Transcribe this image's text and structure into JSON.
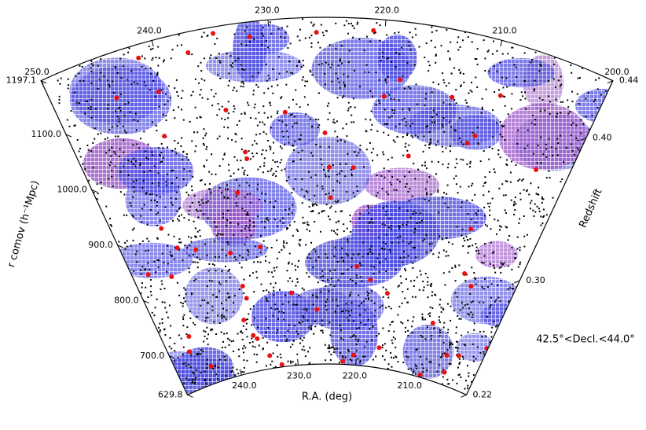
{
  "chart_data": {
    "type": "wedge",
    "x_label": "R.A. (deg)",
    "y_label": "r comov (h⁻¹Mpc)",
    "y2_label": "Redshift",
    "annotation": "42.5°<Decl.<44.0°",
    "xlim": [
      250,
      200
    ],
    "xticks": [
      {
        "value": 250,
        "label": "250.0"
      },
      {
        "value": 240,
        "label": "240.0"
      },
      {
        "value": 230,
        "label": "230.0"
      },
      {
        "value": 220,
        "label": "220.0"
      },
      {
        "value": 210,
        "label": "210.0"
      },
      {
        "value": 200,
        "label": "200.0"
      }
    ],
    "ylim": [
      629.8,
      1197.1
    ],
    "yticks": [
      629.8,
      {
        "value": 700,
        "label": "700.0"
      },
      {
        "value": 800,
        "label": "800.0"
      },
      {
        "value": 900,
        "label": "900.0"
      },
      {
        "value": 1000,
        "label": "1000.0"
      },
      {
        "value": 1100,
        "label": "1100.0"
      },
      1197.1
    ],
    "y2lim": [
      0.22,
      0.44
    ],
    "y2ticks": [
      0.22,
      {
        "value": 0.3,
        "label": "0.30"
      },
      {
        "value": 0.4,
        "label": "0.40"
      },
      0.44
    ]
  }
}
